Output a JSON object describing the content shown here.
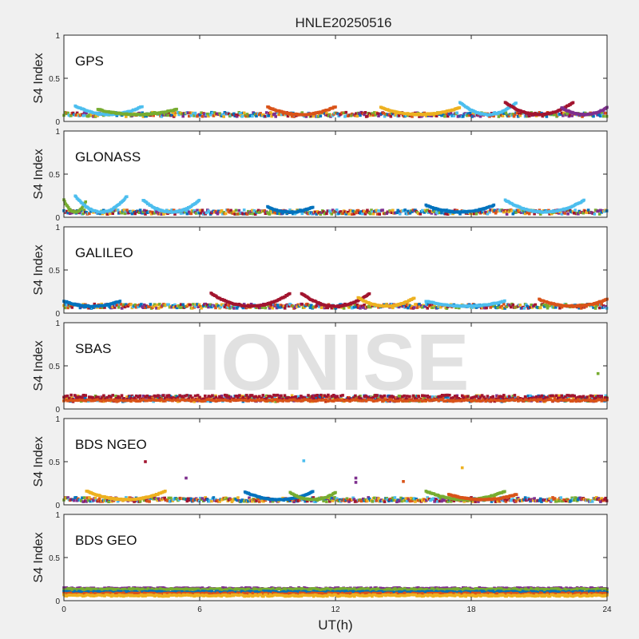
{
  "chart_data": {
    "type": "scatter",
    "title": "HNLE20250516",
    "xlabel": "UT(h)",
    "ylabel": "S4 Index",
    "xlim": [
      0,
      24
    ],
    "ylim": [
      0,
      1
    ],
    "x_ticks": [
      "0",
      "6",
      "12",
      "18",
      "24"
    ],
    "y_ticks": [
      "0",
      "0.5",
      "1"
    ],
    "watermark": "IONISE",
    "grid": false,
    "colors": [
      "#0072bd",
      "#d95319",
      "#edb120",
      "#7e2f8e",
      "#77ac30",
      "#4dbeee",
      "#a2142f"
    ],
    "panels": [
      {
        "label": "GPS",
        "baseline": 0.08,
        "arcs": [
          {
            "x": [
              0.5,
              3.5
            ],
            "peak": 0.18,
            "color": "#4dbeee"
          },
          {
            "x": [
              1.5,
              5.0
            ],
            "peak": 0.14,
            "color": "#77ac30"
          },
          {
            "x": [
              9.0,
              12.0
            ],
            "peak": 0.17,
            "color": "#d95319"
          },
          {
            "x": [
              14.0,
              17.5
            ],
            "peak": 0.16,
            "color": "#edb120"
          },
          {
            "x": [
              17.5,
              20.0
            ],
            "peak": 0.22,
            "color": "#4dbeee"
          },
          {
            "x": [
              19.5,
              22.5
            ],
            "peak": 0.22,
            "color": "#a2142f"
          },
          {
            "x": [
              22.0,
              24.0
            ],
            "peak": 0.16,
            "color": "#7e2f8e"
          }
        ]
      },
      {
        "label": "GLONASS",
        "baseline": 0.06,
        "arcs": [
          {
            "x": [
              0.0,
              1.0
            ],
            "peak": 0.2,
            "color": "#77ac30"
          },
          {
            "x": [
              0.5,
              2.8
            ],
            "peak": 0.25,
            "color": "#4dbeee"
          },
          {
            "x": [
              3.5,
              6.0
            ],
            "peak": 0.2,
            "color": "#4dbeee"
          },
          {
            "x": [
              9.0,
              11.0
            ],
            "peak": 0.12,
            "color": "#0072bd"
          },
          {
            "x": [
              16.0,
              19.0
            ],
            "peak": 0.14,
            "color": "#0072bd"
          },
          {
            "x": [
              19.5,
              23.0
            ],
            "peak": 0.2,
            "color": "#4dbeee"
          }
        ]
      },
      {
        "label": "GALILEO",
        "baseline": 0.08,
        "arcs": [
          {
            "x": [
              0.0,
              2.5
            ],
            "peak": 0.14,
            "color": "#0072bd"
          },
          {
            "x": [
              6.5,
              10.0
            ],
            "peak": 0.23,
            "color": "#a2142f"
          },
          {
            "x": [
              10.5,
              13.5
            ],
            "peak": 0.23,
            "color": "#a2142f"
          },
          {
            "x": [
              13.0,
              15.5
            ],
            "peak": 0.18,
            "color": "#edb120"
          },
          {
            "x": [
              16.0,
              19.5
            ],
            "peak": 0.14,
            "color": "#4dbeee"
          },
          {
            "x": [
              21.0,
              24.0
            ],
            "peak": 0.16,
            "color": "#d95319"
          }
        ]
      },
      {
        "label": "SBAS",
        "baseline": 0.12,
        "arcs": [],
        "outliers": [
          {
            "x": 23.6,
            "y": 0.41,
            "color": "#77ac30"
          }
        ]
      },
      {
        "label": "BDS NGEO",
        "baseline": 0.06,
        "arcs": [
          {
            "x": [
              1.0,
              4.5
            ],
            "peak": 0.16,
            "color": "#edb120"
          },
          {
            "x": [
              8.0,
              11.0
            ],
            "peak": 0.15,
            "color": "#0072bd"
          },
          {
            "x": [
              10.0,
              12.0
            ],
            "peak": 0.14,
            "color": "#77ac30"
          },
          {
            "x": [
              16.0,
              19.5
            ],
            "peak": 0.16,
            "color": "#77ac30"
          },
          {
            "x": [
              17.0,
              20.0
            ],
            "peak": 0.12,
            "color": "#d95319"
          }
        ],
        "outliers": [
          {
            "x": 3.6,
            "y": 0.5,
            "color": "#a2142f"
          },
          {
            "x": 5.4,
            "y": 0.31,
            "color": "#7e2f8e"
          },
          {
            "x": 10.6,
            "y": 0.51,
            "color": "#4dbeee"
          },
          {
            "x": 12.9,
            "y": 0.31,
            "color": "#7e2f8e"
          },
          {
            "x": 12.9,
            "y": 0.26,
            "color": "#7e2f8e"
          },
          {
            "x": 15.0,
            "y": 0.27,
            "color": "#d95319"
          },
          {
            "x": 17.6,
            "y": 0.43,
            "color": "#edb120"
          }
        ]
      },
      {
        "label": "BDS GEO",
        "baseline": 0.0,
        "bands": [
          {
            "y": 0.14,
            "color": "#7e2f8e"
          },
          {
            "y": 0.13,
            "color": "#77ac30"
          },
          {
            "y": 0.1,
            "color": "#0072bd"
          },
          {
            "y": 0.08,
            "color": "#d95319"
          },
          {
            "y": 0.06,
            "color": "#edb120"
          }
        ],
        "arcs": []
      }
    ]
  }
}
